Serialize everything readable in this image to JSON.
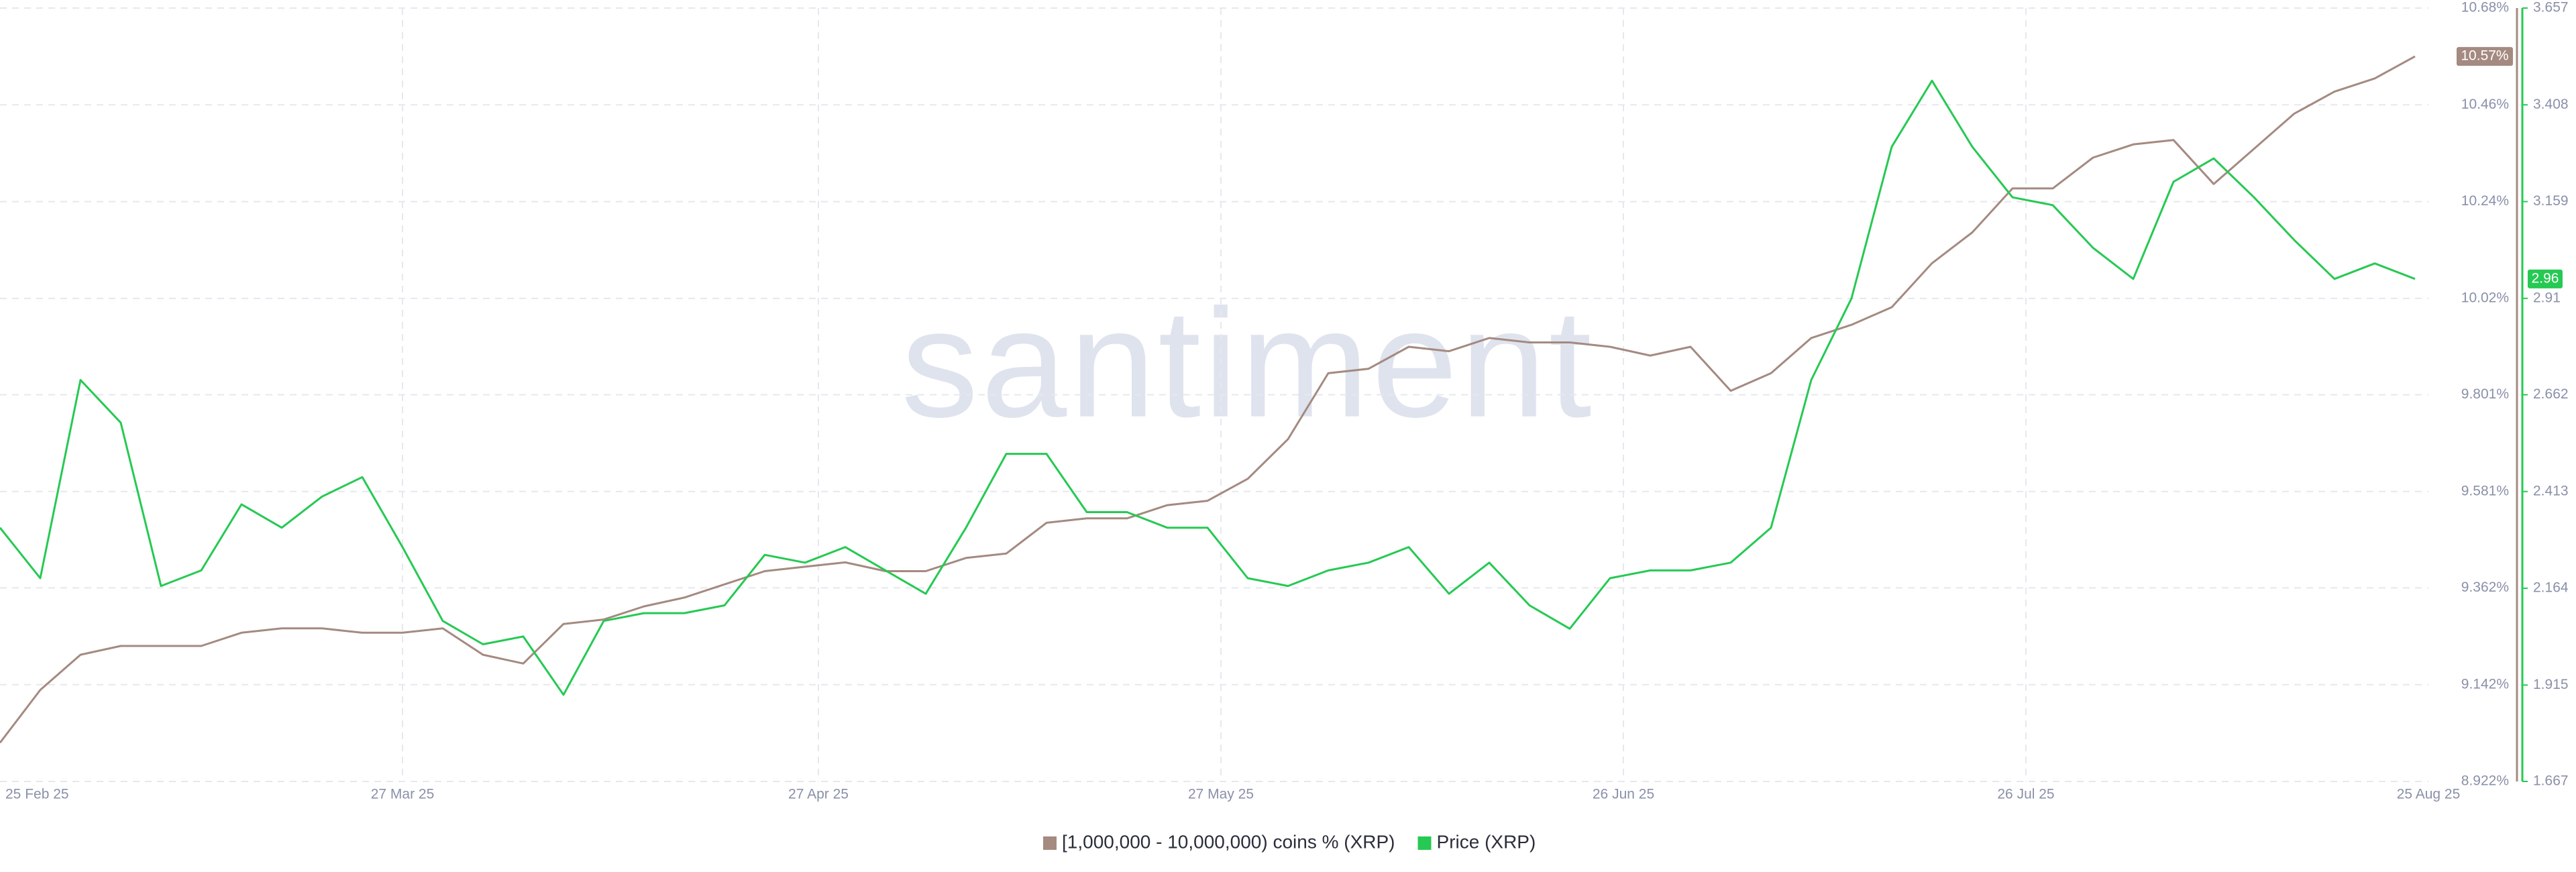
{
  "chart_data": {
    "type": "line",
    "watermark": "santiment",
    "x": [
      "2025-02-25",
      "2025-02-28",
      "2025-03-03",
      "2025-03-06",
      "2025-03-09",
      "2025-03-12",
      "2025-03-15",
      "2025-03-18",
      "2025-03-21",
      "2025-03-24",
      "2025-03-27",
      "2025-03-30",
      "2025-04-02",
      "2025-04-05",
      "2025-04-08",
      "2025-04-11",
      "2025-04-14",
      "2025-04-17",
      "2025-04-20",
      "2025-04-23",
      "2025-04-26",
      "2025-04-29",
      "2025-05-02",
      "2025-05-05",
      "2025-05-08",
      "2025-05-11",
      "2025-05-14",
      "2025-05-17",
      "2025-05-20",
      "2025-05-23",
      "2025-05-26",
      "2025-05-29",
      "2025-06-01",
      "2025-06-04",
      "2025-06-07",
      "2025-06-10",
      "2025-06-13",
      "2025-06-16",
      "2025-06-19",
      "2025-06-22",
      "2025-06-25",
      "2025-06-28",
      "2025-07-01",
      "2025-07-04",
      "2025-07-07",
      "2025-07-10",
      "2025-07-13",
      "2025-07-16",
      "2025-07-19",
      "2025-07-22",
      "2025-07-25",
      "2025-07-28",
      "2025-07-31",
      "2025-08-03",
      "2025-08-06",
      "2025-08-09",
      "2025-08-12",
      "2025-08-15",
      "2025-08-18",
      "2025-08-21",
      "2025-08-24"
    ],
    "xlim": [
      "2025-02-25",
      "2025-08-25"
    ],
    "xticks": [
      {
        "value": "2025-02-25",
        "label": "25 Feb 25"
      },
      {
        "value": "2025-03-27",
        "label": "27 Mar 25"
      },
      {
        "value": "2025-04-27",
        "label": "27 Apr 25"
      },
      {
        "value": "2025-05-27",
        "label": "27 May 25"
      },
      {
        "value": "2025-06-26",
        "label": "26 Jun 25"
      },
      {
        "value": "2025-07-26",
        "label": "26 Jul 25"
      },
      {
        "value": "2025-08-25",
        "label": "25 Aug 25"
      }
    ],
    "ylim": [
      8.922,
      10.68
    ],
    "yticks": [
      {
        "value": 8.922,
        "label": "8.922%"
      },
      {
        "value": 9.142,
        "label": "9.142%"
      },
      {
        "value": 9.362,
        "label": "9.362%"
      },
      {
        "value": 9.581,
        "label": "9.581%"
      },
      {
        "value": 9.801,
        "label": "9.801%"
      },
      {
        "value": 10.02,
        "label": "10.02%"
      },
      {
        "value": 10.24,
        "label": "10.24%"
      },
      {
        "value": 10.46,
        "label": "10.46%"
      },
      {
        "value": 10.68,
        "label": "10.68%"
      }
    ],
    "y2lim": [
      1.667,
      3.657
    ],
    "y2ticks": [
      1.667,
      1.915,
      2.164,
      2.413,
      2.662,
      2.91,
      3.159,
      3.408,
      3.657
    ],
    "grid": true,
    "legend": "bottom",
    "series": [
      {
        "name": "[1,000,000 - 10,000,000) coins % (XRP)",
        "color": "#a48a80",
        "axis": "y",
        "values": [
          9.01,
          9.13,
          9.21,
          9.23,
          9.23,
          9.23,
          9.26,
          9.27,
          9.27,
          9.26,
          9.26,
          9.27,
          9.21,
          9.19,
          9.28,
          9.29,
          9.32,
          9.34,
          9.37,
          9.4,
          9.41,
          9.42,
          9.4,
          9.4,
          9.43,
          9.44,
          9.51,
          9.52,
          9.52,
          9.55,
          9.56,
          9.61,
          9.7,
          9.85,
          9.86,
          9.91,
          9.9,
          9.93,
          9.92,
          9.92,
          9.91,
          9.89,
          9.91,
          9.81,
          9.85,
          9.93,
          9.96,
          10.0,
          10.1,
          10.17,
          10.27,
          10.27,
          10.34,
          10.37,
          10.38,
          10.28,
          10.36,
          10.44,
          10.49,
          10.52,
          10.57
        ],
        "value_labels": [
          null,
          null,
          null,
          null,
          null,
          null,
          null,
          null,
          null,
          null,
          null,
          null,
          null,
          null,
          null,
          null,
          null,
          null,
          null,
          null,
          null,
          null,
          null,
          null,
          null,
          null,
          null,
          null,
          null,
          null,
          null,
          null,
          null,
          null,
          null,
          null,
          null,
          null,
          null,
          null,
          null,
          null,
          null,
          null,
          null,
          null,
          null,
          null,
          null,
          null,
          null,
          null,
          null,
          null,
          null,
          null,
          null,
          null,
          null,
          null,
          "10.57%"
        ]
      },
      {
        "name": "Price (XRP)",
        "color": "#26c953",
        "axis": "y2",
        "values": [
          2.32,
          2.19,
          2.7,
          2.59,
          2.17,
          2.21,
          2.38,
          2.32,
          2.4,
          2.45,
          2.27,
          2.08,
          2.02,
          2.04,
          1.89,
          2.08,
          2.1,
          2.1,
          2.12,
          2.25,
          2.23,
          2.27,
          2.21,
          2.15,
          2.32,
          2.51,
          2.51,
          2.36,
          2.36,
          2.32,
          2.32,
          2.19,
          2.17,
          2.21,
          2.23,
          2.27,
          2.15,
          2.23,
          2.12,
          2.06,
          2.19,
          2.21,
          2.21,
          2.23,
          2.32,
          2.7,
          2.91,
          3.3,
          3.47,
          3.3,
          3.17,
          3.15,
          3.04,
          2.96,
          3.21,
          3.27,
          3.17,
          3.06,
          2.96,
          3.0,
          2.96
        ]
      }
    ]
  }
}
